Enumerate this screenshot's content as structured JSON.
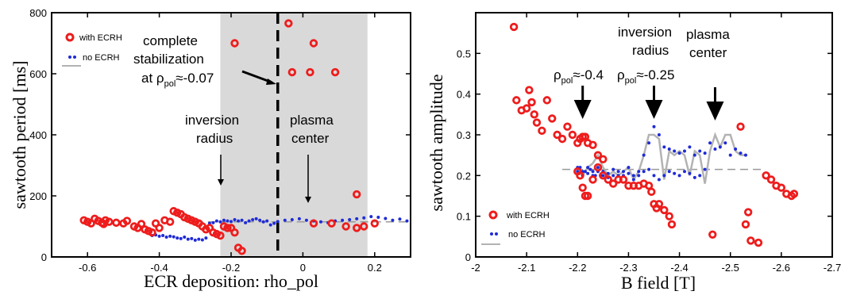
{
  "chart_data": [
    {
      "type": "scatter",
      "xlabel": "ECR deposition: rho_pol",
      "ylabel": "sawtooth period [ms]",
      "xlim": [
        -0.7,
        0.3
      ],
      "ylim": [
        0,
        800
      ],
      "xticks": [
        -0.6,
        -0.4,
        -0.2,
        0,
        0.2
      ],
      "xtick_labels": [
        "-0.6",
        "-0.4",
        "-0.2",
        "0",
        "0.2"
      ],
      "yticks": [
        0,
        200,
        400,
        600,
        800
      ],
      "ytick_labels": [
        "0",
        "200",
        "400",
        "600",
        "800"
      ],
      "shaded_region": [
        -0.23,
        0.18
      ],
      "dashed_line_x": -0.07,
      "legend": {
        "placement": "top-left",
        "with_label": "with ECRH",
        "no_label": "no ECRH"
      },
      "colors": {
        "with": "#ee1c1c",
        "no": "#1f2bd6",
        "shade": "#d9d9d9",
        "ref": "#999999"
      },
      "annotations": {
        "stab_l1": "complete",
        "stab_l2": "stabilization",
        "stab_l3_prefix": "at ρ",
        "stab_l3_sub": "pol",
        "stab_l3_suffix": "≈-0.07",
        "inv_l1": "inversion",
        "inv_l2": "radius",
        "pc_l1": "plasma",
        "pc_l2": "center"
      },
      "series": [
        {
          "name": "with ECRH",
          "x": [
            -0.61,
            -0.6,
            -0.59,
            -0.58,
            -0.57,
            -0.56,
            -0.555,
            -0.55,
            -0.54,
            -0.52,
            -0.5,
            -0.49,
            -0.47,
            -0.46,
            -0.45,
            -0.44,
            -0.43,
            -0.42,
            -0.41,
            -0.4,
            -0.385,
            -0.37,
            -0.36,
            -0.35,
            -0.34,
            -0.33,
            -0.32,
            -0.31,
            -0.3,
            -0.29,
            -0.28,
            -0.27,
            -0.26,
            -0.25,
            -0.24,
            -0.23,
            -0.22,
            -0.21,
            -0.2,
            -0.19,
            -0.18,
            -0.17,
            -0.04,
            0.03,
            -0.19,
            -0.03,
            0.02,
            0.09,
            0.15,
            0.03,
            0.08,
            0.12,
            0.15,
            0.17,
            0.2
          ],
          "y": [
            120,
            115,
            110,
            125,
            118,
            112,
            108,
            120,
            115,
            112,
            110,
            118,
            100,
            95,
            108,
            90,
            85,
            80,
            110,
            95,
            120,
            115,
            150,
            145,
            140,
            130,
            125,
            120,
            115,
            110,
            100,
            90,
            95,
            80,
            75,
            70,
            100,
            95,
            95,
            80,
            30,
            20,
            765,
            700,
            700,
            605,
            605,
            605,
            205,
            110,
            110,
            100,
            95,
            100,
            110
          ]
        },
        {
          "name": "no ECRH",
          "x": [
            -0.42,
            -0.41,
            -0.4,
            -0.39,
            -0.38,
            -0.37,
            -0.36,
            -0.35,
            -0.34,
            -0.33,
            -0.32,
            -0.31,
            -0.3,
            -0.29,
            -0.28,
            -0.27,
            -0.26,
            -0.25,
            -0.24,
            -0.23,
            -0.22,
            -0.21,
            -0.2,
            -0.19,
            -0.18,
            -0.17,
            -0.16,
            -0.15,
            -0.14,
            -0.13,
            -0.12,
            -0.11,
            -0.1,
            -0.09,
            -0.08,
            -0.07,
            -0.05,
            -0.03,
            -0.01,
            0.01,
            0.03,
            0.05,
            0.07,
            0.09,
            0.11,
            0.13,
            0.15,
            0.17,
            0.19,
            0.21,
            0.23,
            0.25,
            0.27,
            0.29
          ],
          "y": [
            70,
            72,
            68,
            70,
            65,
            68,
            66,
            62,
            60,
            65,
            58,
            60,
            55,
            58,
            56,
            62,
            110,
            112,
            118,
            115,
            120,
            118,
            116,
            122,
            118,
            120,
            112,
            118,
            122,
            125,
            120,
            115,
            118,
            105,
            110,
            116,
            120,
            122,
            125,
            120,
            118,
            115,
            112,
            118,
            120,
            122,
            125,
            128,
            132,
            130,
            126,
            120,
            124,
            118
          ]
        }
      ],
      "reference_line": {
        "style": "dashed",
        "y": 115,
        "x_from": -0.3,
        "x_to": 0.3
      }
    },
    {
      "type": "scatter",
      "xlabel": "B field [T]",
      "ylabel": "sawtooth amplitude",
      "xlim": [
        -2.0,
        -2.7
      ],
      "ylim": [
        0,
        0.6
      ],
      "xticks": [
        -2.0,
        -2.1,
        -2.2,
        -2.3,
        -2.4,
        -2.5,
        -2.6,
        -2.7
      ],
      "xtick_labels": [
        "-2",
        "-2.1",
        "-2.2",
        "-2.3",
        "-2.4",
        "-2.5",
        "-2.6",
        "-2.7"
      ],
      "yticks": [
        0,
        0.1,
        0.2,
        0.3,
        0.4,
        0.5
      ],
      "ytick_labels": [
        "0",
        "0.1",
        "0.2",
        "0.3",
        "0.4",
        "0.5"
      ],
      "legend": {
        "placement": "bottom-left",
        "with_label": "with ECRH",
        "no_label": "no ECRH"
      },
      "colors": {
        "with": "#ee1c1c",
        "no": "#1f2bd6",
        "grey": "#b3b3b3",
        "ref": "#999999"
      },
      "annotations": {
        "rho1_prefix": "ρ",
        "rho1_sub": "pol",
        "rho1_suffix": "≈-0.4",
        "rho2_prefix": "ρ",
        "rho2_sub": "pol",
        "rho2_suffix": "≈-0.25",
        "inv_l1": "inversion",
        "inv_l2": "radius",
        "pc_l1": "plasma",
        "pc_l2": "center"
      },
      "arrows_x": [
        -2.21,
        -2.35,
        -2.47
      ],
      "series": [
        {
          "name": "with ECRH",
          "x": [
            -2.075,
            -2.08,
            -2.09,
            -2.1,
            -2.105,
            -2.11,
            -2.115,
            -2.12,
            -2.13,
            -2.14,
            -2.15,
            -2.16,
            -2.17,
            -2.18,
            -2.19,
            -2.2,
            -2.205,
            -2.21,
            -2.215,
            -2.22,
            -2.23,
            -2.24,
            -2.25,
            -2.2,
            -2.205,
            -2.21,
            -2.215,
            -2.22,
            -2.23,
            -2.24,
            -2.25,
            -2.26,
            -2.27,
            -2.28,
            -2.29,
            -2.3,
            -2.31,
            -2.32,
            -2.33,
            -2.34,
            -2.345,
            -2.35,
            -2.355,
            -2.36,
            -2.37,
            -2.38,
            -2.385,
            -2.465,
            -2.52,
            -2.53,
            -2.535,
            -2.54,
            -2.555,
            -2.57,
            -2.58,
            -2.59,
            -2.6,
            -2.61,
            -2.62,
            -2.625
          ],
          "y": [
            0.565,
            0.385,
            0.36,
            0.365,
            0.41,
            0.38,
            0.35,
            0.33,
            0.31,
            0.385,
            0.34,
            0.3,
            0.29,
            0.32,
            0.3,
            0.28,
            0.29,
            0.295,
            0.295,
            0.28,
            0.275,
            0.25,
            0.24,
            0.21,
            0.2,
            0.17,
            0.15,
            0.15,
            0.19,
            0.22,
            0.2,
            0.19,
            0.18,
            0.19,
            0.19,
            0.175,
            0.175,
            0.175,
            0.18,
            0.175,
            0.16,
            0.13,
            0.12,
            0.13,
            0.115,
            0.1,
            0.08,
            0.055,
            0.32,
            0.08,
            0.11,
            0.04,
            0.035,
            0.2,
            0.19,
            0.175,
            0.17,
            0.155,
            0.15,
            0.155
          ]
        },
        {
          "name": "no ECRH",
          "x": [
            -2.2,
            -2.205,
            -2.21,
            -2.215,
            -2.22,
            -2.225,
            -2.23,
            -2.235,
            -2.24,
            -2.245,
            -2.25,
            -2.26,
            -2.27,
            -2.28,
            -2.29,
            -2.3,
            -2.31,
            -2.32,
            -2.33,
            -2.34,
            -2.35,
            -2.36,
            -2.37,
            -2.38,
            -2.39,
            -2.4,
            -2.41,
            -2.42,
            -2.43,
            -2.44,
            -2.45,
            -2.46,
            -2.47,
            -2.48,
            -2.49,
            -2.5,
            -2.51,
            -2.52,
            -2.53,
            -2.2,
            -2.21,
            -2.22,
            -2.23,
            -2.24,
            -2.25,
            -2.26,
            -2.27,
            -2.28,
            -2.29,
            -2.3,
            -2.31,
            -2.32,
            -2.33,
            -2.34,
            -2.35,
            -2.36,
            -2.37,
            -2.38,
            -2.39,
            -2.4,
            -2.41,
            -2.42,
            -2.43,
            -2.44,
            -2.45
          ],
          "y": [
            0.21,
            0.22,
            0.2,
            0.21,
            0.205,
            0.215,
            0.21,
            0.2,
            0.22,
            0.2,
            0.21,
            0.205,
            0.215,
            0.2,
            0.21,
            0.22,
            0.2,
            0.21,
            0.25,
            0.28,
            0.32,
            0.3,
            0.27,
            0.265,
            0.26,
            0.255,
            0.26,
            0.27,
            0.25,
            0.26,
            0.255,
            0.28,
            0.265,
            0.27,
            0.28,
            0.25,
            0.265,
            0.255,
            0.25,
            0.22,
            0.21,
            0.22,
            0.2,
            0.21,
            0.2,
            0.195,
            0.2,
            0.21,
            0.2,
            0.205,
            0.19,
            0.2,
            0.21,
            0.215,
            0.2,
            0.19,
            0.2,
            0.21,
            0.205,
            0.2,
            0.21,
            0.205,
            0.195,
            0.2,
            0.215
          ]
        }
      ],
      "grey_line": {
        "x": [
          -2.2,
          -2.21,
          -2.22,
          -2.23,
          -2.24,
          -2.25,
          -2.26,
          -2.27,
          -2.28,
          -2.29,
          -2.3,
          -2.31,
          -2.32,
          -2.33,
          -2.34,
          -2.35,
          -2.36,
          -2.37,
          -2.38,
          -2.39,
          -2.4,
          -2.41,
          -2.42,
          -2.43,
          -2.44,
          -2.45,
          -2.46,
          -2.47,
          -2.48,
          -2.49,
          -2.5,
          -2.51,
          -2.52,
          -2.53
        ],
        "y": [
          0.21,
          0.2,
          0.22,
          0.23,
          0.25,
          0.22,
          0.2,
          0.21,
          0.2,
          0.21,
          0.22,
          0.19,
          0.21,
          0.25,
          0.3,
          0.3,
          0.29,
          0.19,
          0.26,
          0.25,
          0.26,
          0.25,
          0.2,
          0.26,
          0.25,
          0.18,
          0.26,
          0.3,
          0.27,
          0.3,
          0.3,
          0.26,
          0.25,
          0.25
        ]
      },
      "reference_line": {
        "style": "dashed",
        "y": 0.215,
        "x_from": -2.17,
        "x_to": -2.56
      }
    }
  ]
}
